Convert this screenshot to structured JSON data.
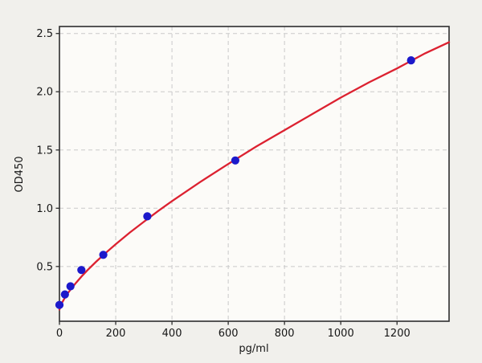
{
  "figure": {
    "background": "#f1f0ec",
    "plot_background": "#fcfbf8",
    "spine_color": "#2e2e2e",
    "grid_color": "#c9c9c9",
    "tick_color": "#2e2e2e",
    "text_color": "#161616",
    "curve_color": "#dc2130",
    "marker_color": "#1c19cb"
  },
  "chart_data": {
    "type": "scatter",
    "title": "",
    "xlabel": "pg/ml",
    "ylabel": "OD450",
    "xlim": [
      0,
      1385
    ],
    "ylim": [
      0.03,
      2.56
    ],
    "x_ticks": [
      0,
      200,
      400,
      600,
      800,
      1000,
      1200
    ],
    "x_tick_labels": [
      "0",
      "200",
      "400",
      "600",
      "800",
      "1000",
      "1200"
    ],
    "y_ticks": [
      0.5,
      1.0,
      1.5,
      2.0,
      2.5
    ],
    "y_tick_labels": [
      "0.5",
      "1.0",
      "1.5",
      "2.0",
      "2.5"
    ],
    "grid": true,
    "legend": null,
    "points": {
      "name": "standard-points",
      "x": [
        0,
        19.5,
        39,
        78,
        156,
        312.5,
        625,
        1250
      ],
      "y": [
        0.17,
        0.26,
        0.33,
        0.47,
        0.6,
        0.93,
        1.41,
        2.27
      ]
    },
    "fit_curve": {
      "name": "fitted-curve",
      "x": [
        0,
        5,
        10,
        20,
        30,
        40,
        60,
        80,
        100,
        130,
        160,
        200,
        250,
        300,
        350,
        400,
        500,
        600,
        700,
        800,
        900,
        1000,
        1100,
        1200,
        1300,
        1385
      ],
      "y": [
        0.13,
        0.168,
        0.193,
        0.235,
        0.271,
        0.304,
        0.363,
        0.418,
        0.469,
        0.54,
        0.607,
        0.691,
        0.791,
        0.884,
        0.975,
        1.061,
        1.225,
        1.38,
        1.53,
        1.67,
        1.81,
        1.95,
        2.08,
        2.2,
        2.33,
        2.425
      ]
    }
  }
}
